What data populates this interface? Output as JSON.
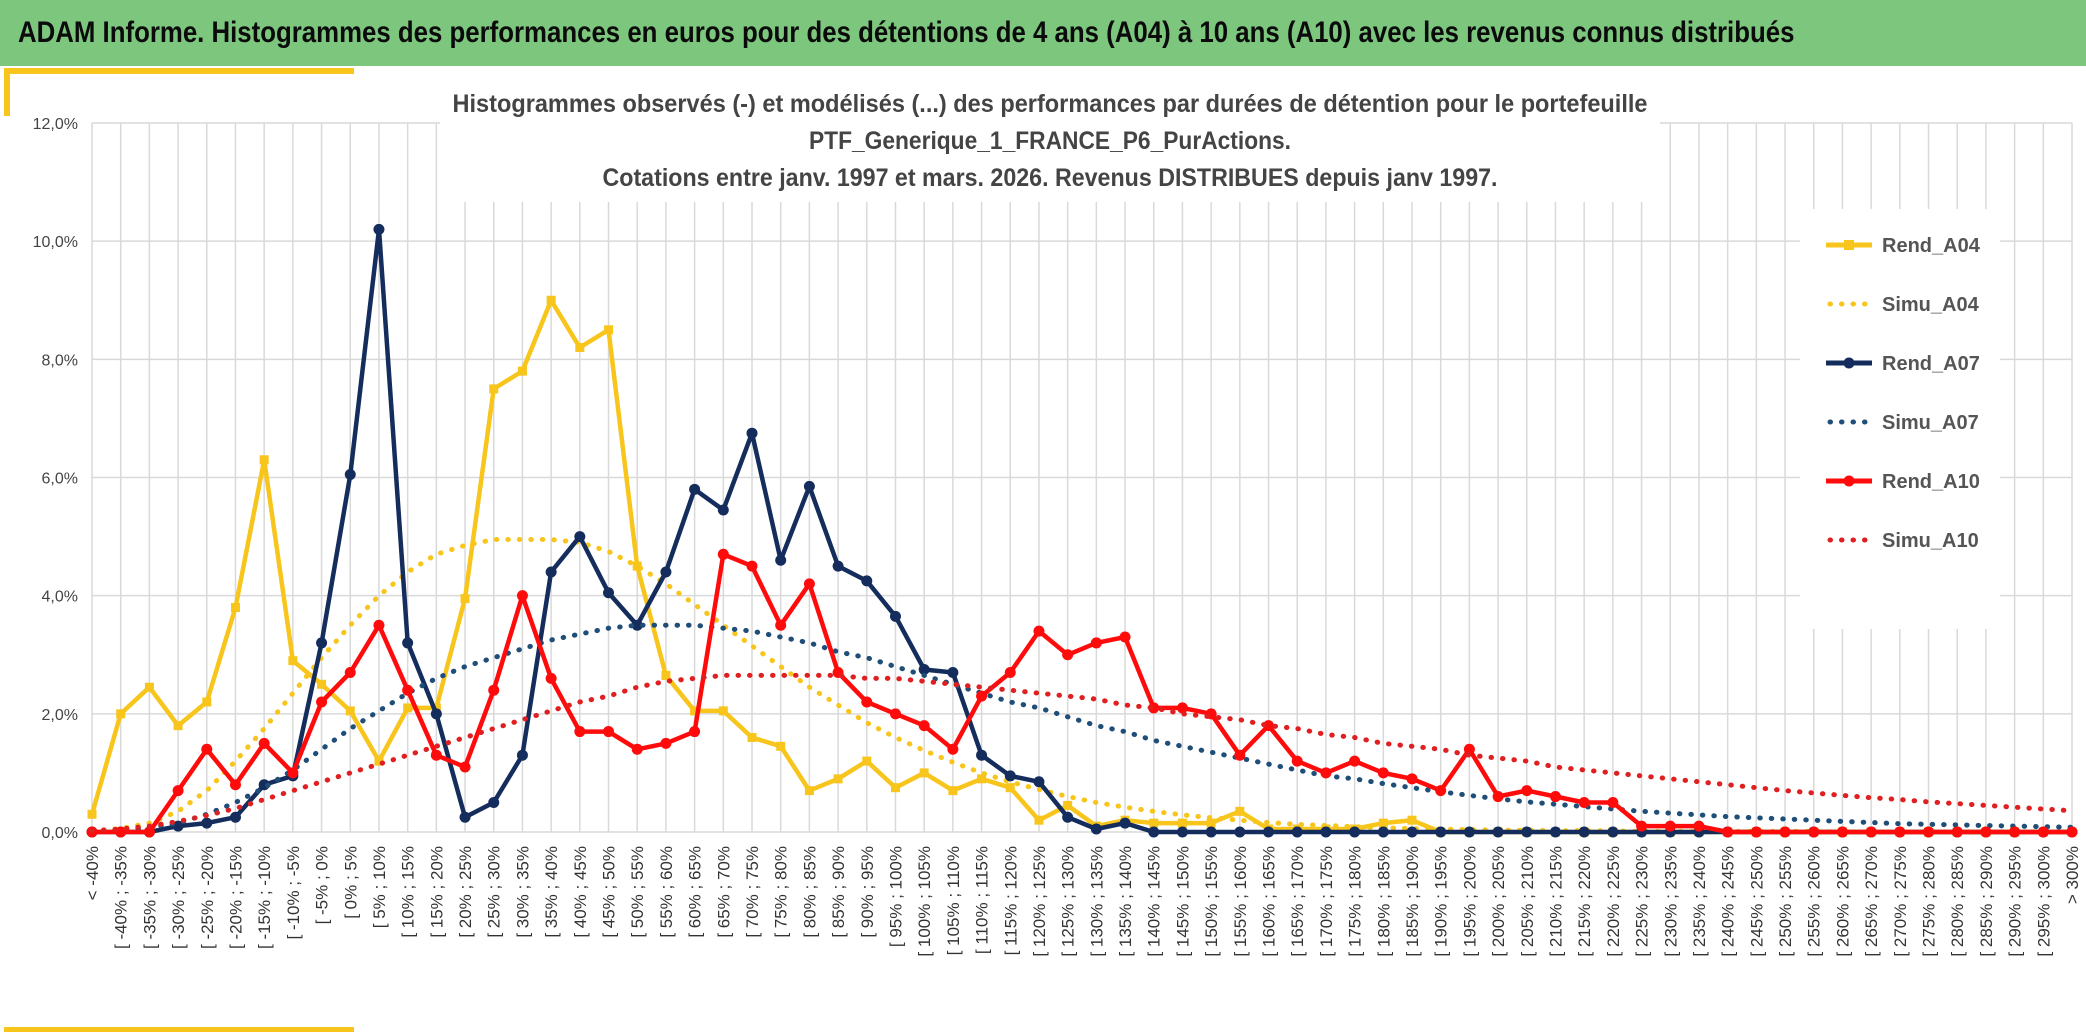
{
  "header": {
    "title": "ADAM Informe. Histogrammes des performances en euros pour des détentions de 4 ans (A04) à 10 ans (A10) avec les revenus connus distribués"
  },
  "colors": {
    "banner": "#7dc67e",
    "accent_bar": "#f7c51b",
    "A04": "#f7c51b",
    "A07": "#142d5c",
    "Simu_A07": "#1f4e79",
    "A10": "#ff0b0b",
    "Simu_A10": "#e02020",
    "grid": "#d9d9d9"
  },
  "chart_data": {
    "type": "line",
    "title": [
      "Histogrammes observés (-) et modélisés (...) des performances par durées de détention pour le portefeuille",
      "PTF_Generique_1_FRANCE_P6_PurActions.",
      "Cotations entre janv. 1997 et mars. 2026. Revenus DISTRIBUES depuis janv 1997."
    ],
    "ylim": [
      0,
      12
    ],
    "yticks": [
      "0,0%",
      "2,0%",
      "4,0%",
      "6,0%",
      "8,0%",
      "10,0%",
      "12,0%"
    ],
    "grid": true,
    "legend_position": "right",
    "categories": [
      "< -40%",
      "[ -40% ; -35%",
      "[ -35% ; -30%",
      "[ -30% ; -25%",
      "[ -25% ; -20%",
      "[ -20% ; -15%",
      "[ -15% ; -10%",
      "[ -10% ; -5%",
      "[ -5% ; 0%",
      "[ 0% ; 5%",
      "[ 5% ; 10%",
      "[ 10% ; 15%",
      "[ 15% ; 20%",
      "[ 20% ; 25%",
      "[ 25% ; 30%",
      "[ 30% ; 35%",
      "[ 35% ; 40%",
      "[ 40% ; 45%",
      "[ 45% ; 50%",
      "[ 50% ; 55%",
      "[ 55% ; 60%",
      "[ 60% ; 65%",
      "[ 65% ; 70%",
      "[ 70% ; 75%",
      "[ 75% ; 80%",
      "[ 80% ; 85%",
      "[ 85% ; 90%",
      "[ 90% ; 95%",
      "[ 95% ; 100%",
      "[ 100% ; 105%",
      "[ 105% ; 110%",
      "[ 110% ; 115%",
      "[ 115% ; 120%",
      "[ 120% ; 125%",
      "[ 125% ; 130%",
      "[ 130% ; 135%",
      "[ 135% ; 140%",
      "[ 140% ; 145%",
      "[ 145% ; 150%",
      "[ 150% ; 155%",
      "[ 155% ; 160%",
      "[ 160% ; 165%",
      "[ 165% ; 170%",
      "[ 170% ; 175%",
      "[ 175% ; 180%",
      "[ 180% ; 185%",
      "[ 185% ; 190%",
      "[ 190% ; 195%",
      "[ 195% ; 200%",
      "[ 200% ; 205%",
      "[ 205% ; 210%",
      "[ 210% ; 215%",
      "[ 215% ; 220%",
      "[ 220% ; 225%",
      "[ 225% ; 230%",
      "[ 230% ; 235%",
      "[ 235% ; 240%",
      "[ 240% ; 245%",
      "[ 245% ; 250%",
      "[ 250% ; 255%",
      "[ 255% ; 260%",
      "[ 260% ; 265%",
      "[ 265% ; 270%",
      "[ 270% ; 275%",
      "[ 275% ; 280%",
      "[ 280% ; 285%",
      "[ 285% ; 290%",
      "[ 290% ; 295%",
      "[ 295% ; 300%",
      "> 300%"
    ],
    "series": [
      {
        "name": "Rend_A04",
        "style": "solid",
        "marker": "square",
        "color": "#f7c51b",
        "values": [
          0.3,
          2.0,
          2.45,
          1.8,
          2.2,
          3.8,
          6.3,
          2.9,
          2.5,
          2.05,
          1.2,
          2.1,
          2.1,
          3.95,
          7.5,
          7.8,
          9.0,
          8.2,
          8.5,
          4.5,
          2.65,
          2.05,
          2.05,
          1.6,
          1.45,
          0.7,
          0.9,
          1.2,
          0.75,
          1.0,
          0.7,
          0.9,
          0.75,
          0.2,
          0.45,
          0.1,
          0.2,
          0.15,
          0.15,
          0.15,
          0.35,
          0.05,
          0.05,
          0.05,
          0.05,
          0.15,
          0.2,
          0,
          0,
          0,
          0,
          0,
          0,
          0,
          0,
          0,
          0,
          0,
          0,
          0,
          0,
          0,
          0,
          0,
          0,
          0,
          0,
          0,
          0,
          0
        ]
      },
      {
        "name": "Simu_A04",
        "style": "dotted",
        "marker": "none",
        "color": "#f7c51b",
        "values": [
          0.02,
          0.06,
          0.15,
          0.35,
          0.7,
          1.2,
          1.75,
          2.35,
          2.95,
          3.5,
          4.0,
          4.4,
          4.7,
          4.85,
          4.95,
          4.95,
          4.95,
          4.9,
          4.75,
          4.5,
          4.2,
          3.85,
          3.5,
          3.15,
          2.8,
          2.45,
          2.15,
          1.85,
          1.6,
          1.38,
          1.18,
          1.0,
          0.85,
          0.72,
          0.6,
          0.5,
          0.42,
          0.35,
          0.29,
          0.24,
          0.2,
          0.16,
          0.13,
          0.11,
          0.09,
          0.07,
          0.06,
          0.05,
          0.04,
          0.03,
          0.03,
          0.02,
          0.02,
          0.02,
          0.01,
          0.01,
          0.01,
          0.01,
          0.01,
          0.01,
          0.01,
          0,
          0,
          0,
          0,
          0,
          0,
          0,
          0,
          0
        ]
      },
      {
        "name": "Rend_A07",
        "style": "solid",
        "marker": "circle",
        "color": "#142d5c",
        "values": [
          0,
          0,
          0,
          0.1,
          0.15,
          0.25,
          0.8,
          0.95,
          3.2,
          6.05,
          10.2,
          3.2,
          2.0,
          0.25,
          0.5,
          1.3,
          4.4,
          5.0,
          4.05,
          3.5,
          4.4,
          5.8,
          5.45,
          6.75,
          4.6,
          5.85,
          4.5,
          4.25,
          3.65,
          2.75,
          2.7,
          1.3,
          0.95,
          0.85,
          0.25,
          0.05,
          0.15,
          0,
          0,
          0,
          0,
          0,
          0,
          0,
          0,
          0,
          0,
          0,
          0,
          0,
          0,
          0,
          0,
          0,
          0,
          0,
          0,
          0,
          0,
          0,
          0,
          0,
          0,
          0,
          0,
          0,
          0,
          0,
          0,
          0
        ]
      },
      {
        "name": "Simu_A07",
        "style": "dotted",
        "marker": "none",
        "color": "#1f4e79",
        "values": [
          0.01,
          0.03,
          0.08,
          0.15,
          0.3,
          0.5,
          0.75,
          1.05,
          1.4,
          1.75,
          2.05,
          2.35,
          2.6,
          2.8,
          2.95,
          3.1,
          3.25,
          3.35,
          3.45,
          3.5,
          3.5,
          3.5,
          3.45,
          3.4,
          3.3,
          3.2,
          3.05,
          2.95,
          2.8,
          2.65,
          2.5,
          2.35,
          2.2,
          2.1,
          1.95,
          1.8,
          1.7,
          1.55,
          1.45,
          1.35,
          1.25,
          1.15,
          1.05,
          0.95,
          0.9,
          0.82,
          0.75,
          0.68,
          0.62,
          0.56,
          0.51,
          0.47,
          0.43,
          0.39,
          0.35,
          0.32,
          0.29,
          0.26,
          0.24,
          0.22,
          0.2,
          0.18,
          0.16,
          0.14,
          0.13,
          0.12,
          0.11,
          0.1,
          0.09,
          0.08
        ]
      },
      {
        "name": "Rend_A10",
        "style": "solid",
        "marker": "circle",
        "color": "#ff0b0b",
        "values": [
          0,
          0,
          0,
          0.7,
          1.4,
          0.8,
          1.5,
          1.0,
          2.2,
          2.7,
          3.5,
          2.4,
          1.3,
          1.1,
          2.4,
          4.0,
          2.6,
          1.7,
          1.7,
          1.4,
          1.5,
          1.7,
          4.7,
          4.5,
          3.5,
          4.2,
          2.7,
          2.2,
          2.0,
          1.8,
          1.4,
          2.3,
          2.7,
          3.4,
          3.0,
          3.2,
          3.3,
          2.1,
          2.1,
          2.0,
          1.3,
          1.8,
          1.2,
          1.0,
          1.2,
          1.0,
          0.9,
          0.7,
          1.4,
          0.6,
          0.7,
          0.6,
          0.5,
          0.5,
          0.1,
          0.1,
          0.1,
          0,
          0,
          0,
          0,
          0,
          0,
          0,
          0,
          0,
          0,
          0,
          0,
          0
        ]
      },
      {
        "name": "Simu_A10",
        "style": "dotted",
        "marker": "none",
        "color": "#e02020",
        "values": [
          0.02,
          0.05,
          0.1,
          0.18,
          0.28,
          0.4,
          0.55,
          0.7,
          0.85,
          1.0,
          1.15,
          1.3,
          1.45,
          1.6,
          1.75,
          1.9,
          2.05,
          2.2,
          2.3,
          2.45,
          2.55,
          2.6,
          2.65,
          2.65,
          2.65,
          2.65,
          2.65,
          2.6,
          2.6,
          2.55,
          2.5,
          2.45,
          2.4,
          2.35,
          2.3,
          2.25,
          2.15,
          2.1,
          2.0,
          1.95,
          1.9,
          1.8,
          1.75,
          1.65,
          1.6,
          1.5,
          1.45,
          1.4,
          1.3,
          1.25,
          1.2,
          1.1,
          1.05,
          1.0,
          0.95,
          0.9,
          0.85,
          0.8,
          0.75,
          0.7,
          0.66,
          0.62,
          0.58,
          0.55,
          0.51,
          0.48,
          0.45,
          0.42,
          0.39,
          0.36
        ]
      }
    ]
  }
}
